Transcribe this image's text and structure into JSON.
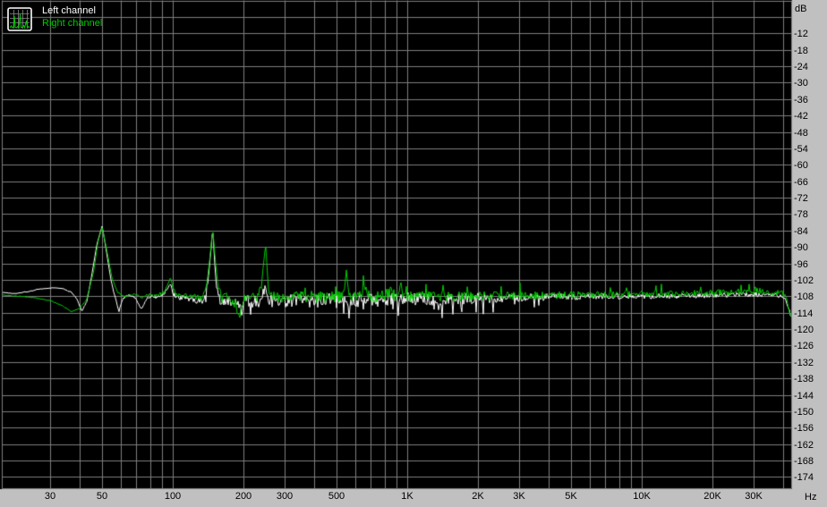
{
  "legend": {
    "left_label": "Left channel",
    "right_label": "Right channel",
    "icon": "spectrum-thumbnail-icon"
  },
  "colors": {
    "plot_background": "#000000",
    "gutter_background": "#c0c0c0",
    "grid": "#7e7e7e",
    "left_channel": "#ffffff",
    "right_channel": "#00cc00",
    "label_text": "#000000"
  },
  "axes": {
    "x": {
      "unit": "Hz",
      "scale": "log",
      "min_hz": 18.3,
      "max_hz": 43400,
      "gridlines_hz": [
        30,
        40,
        50,
        60,
        70,
        80,
        90,
        100,
        200,
        300,
        400,
        500,
        600,
        700,
        800,
        900,
        1000,
        2000,
        3000,
        4000,
        5000,
        6000,
        7000,
        8000,
        9000,
        10000,
        20000,
        30000,
        40000
      ],
      "tick_labels": [
        {
          "hz": 30,
          "label": "30"
        },
        {
          "hz": 50,
          "label": "50"
        },
        {
          "hz": 100,
          "label": "100"
        },
        {
          "hz": 200,
          "label": "200"
        },
        {
          "hz": 300,
          "label": "300"
        },
        {
          "hz": 500,
          "label": "500"
        },
        {
          "hz": 1000,
          "label": "1K"
        },
        {
          "hz": 2000,
          "label": "2K"
        },
        {
          "hz": 3000,
          "label": "3K"
        },
        {
          "hz": 5000,
          "label": "5K"
        },
        {
          "hz": 10000,
          "label": "10K"
        },
        {
          "hz": 20000,
          "label": "20K"
        },
        {
          "hz": 30000,
          "label": "30K"
        }
      ]
    },
    "y": {
      "unit": "dB",
      "scale": "linear",
      "max_db": 0,
      "min_db": -178,
      "grid_step_db": 6,
      "tick_labels": [
        {
          "db": -12,
          "label": "-12"
        },
        {
          "db": -18,
          "label": "-18"
        },
        {
          "db": -24,
          "label": "-24"
        },
        {
          "db": -30,
          "label": "-30"
        },
        {
          "db": -36,
          "label": "-36"
        },
        {
          "db": -42,
          "label": "-42"
        },
        {
          "db": -48,
          "label": "-48"
        },
        {
          "db": -54,
          "label": "-54"
        },
        {
          "db": -60,
          "label": "-60"
        },
        {
          "db": -66,
          "label": "-66"
        },
        {
          "db": -72,
          "label": "-72"
        },
        {
          "db": -78,
          "label": "-78"
        },
        {
          "db": -84,
          "label": "-84"
        },
        {
          "db": -90,
          "label": "-90"
        },
        {
          "db": -96,
          "label": "-96"
        },
        {
          "db": -102,
          "label": "-102"
        },
        {
          "db": -108,
          "label": "-108"
        },
        {
          "db": -114,
          "label": "-114"
        },
        {
          "db": -120,
          "label": "-120"
        },
        {
          "db": -126,
          "label": "-126"
        },
        {
          "db": -132,
          "label": "-132"
        },
        {
          "db": -138,
          "label": "-138"
        },
        {
          "db": -144,
          "label": "-144"
        },
        {
          "db": -150,
          "label": "-150"
        },
        {
          "db": -156,
          "label": "-156"
        },
        {
          "db": -162,
          "label": "-162"
        },
        {
          "db": -168,
          "label": "-168"
        },
        {
          "db": -174,
          "label": "-174"
        }
      ]
    }
  },
  "chart_data": {
    "type": "line",
    "title": "",
    "xlabel": "Hz",
    "ylabel": "dB",
    "xlim": [
      18.3,
      43400
    ],
    "ylim": [
      -178,
      0
    ],
    "grid": true,
    "legend_position": "top-left",
    "noise_floor_db": -108,
    "series": [
      {
        "name": "Left channel",
        "color_ref": "left_channel",
        "keypoints_hz_db": [
          [
            18.3,
            -106.5
          ],
          [
            21,
            -107
          ],
          [
            24,
            -106.3
          ],
          [
            27,
            -105.4
          ],
          [
            31,
            -104.9
          ],
          [
            34,
            -105.2
          ],
          [
            37,
            -106.6
          ],
          [
            39,
            -109
          ],
          [
            41,
            -113.5
          ],
          [
            43,
            -110
          ],
          [
            45,
            -101
          ],
          [
            47.5,
            -89
          ],
          [
            50,
            -82.3
          ],
          [
            52,
            -91
          ],
          [
            54.5,
            -102
          ],
          [
            57,
            -109
          ],
          [
            59,
            -113.3
          ],
          [
            61,
            -109
          ],
          [
            64,
            -107.5
          ],
          [
            68,
            -108
          ],
          [
            71,
            -110
          ],
          [
            74,
            -112.8
          ],
          [
            77,
            -109
          ],
          [
            81,
            -108
          ],
          [
            86,
            -108.5
          ],
          [
            92,
            -107
          ],
          [
            96,
            -104.5
          ],
          [
            98,
            -103.5
          ],
          [
            100,
            -107
          ],
          [
            105,
            -108.5
          ],
          [
            112,
            -108.5
          ],
          [
            120,
            -109
          ],
          [
            128,
            -109.5
          ],
          [
            136,
            -110
          ],
          [
            142,
            -101
          ],
          [
            146,
            -90
          ],
          [
            148,
            -82.8
          ],
          [
            151,
            -96
          ],
          [
            154,
            -106
          ],
          [
            160,
            -110
          ],
          [
            168,
            -109.5
          ],
          [
            176,
            -110
          ],
          [
            184,
            -110.5
          ],
          [
            192,
            -112
          ],
          [
            198,
            -114
          ],
          [
            203,
            -110
          ],
          [
            212,
            -109.5
          ],
          [
            222,
            -110
          ],
          [
            235,
            -109.5
          ],
          [
            246,
            -106
          ],
          [
            252,
            -107.5
          ],
          [
            265,
            -110
          ],
          [
            300,
            -109.5
          ],
          [
            350,
            -109.5
          ],
          [
            430,
            -109.5
          ],
          [
            520,
            -109.5
          ],
          [
            620,
            -109.5
          ],
          [
            750,
            -109.5
          ],
          [
            900,
            -109.3
          ],
          [
            1100,
            -109
          ],
          [
            1500,
            -109
          ],
          [
            2000,
            -108.7
          ],
          [
            3000,
            -108.5
          ],
          [
            4500,
            -108.2
          ],
          [
            7000,
            -108
          ],
          [
            10000,
            -107.9
          ],
          [
            15000,
            -107.8
          ],
          [
            22000,
            -107.6
          ],
          [
            30000,
            -107.4
          ],
          [
            37000,
            -107.6
          ],
          [
            40000,
            -108
          ],
          [
            41500,
            -110
          ],
          [
            42500,
            -113
          ],
          [
            43300,
            -116
          ]
        ],
        "noise": {
          "seed": 1337,
          "amplitude_profile_hz_db": [
            [
              18.3,
              0.15
            ],
            [
              40,
              0.2
            ],
            [
              55,
              0.35
            ],
            [
              80,
              0.6
            ],
            [
              110,
              0.9
            ],
            [
              150,
              1.6
            ],
            [
              210,
              2.3
            ],
            [
              400,
              2.6
            ],
            [
              900,
              2.6
            ],
            [
              1600,
              2.2
            ],
            [
              3000,
              1.5
            ],
            [
              6000,
              1.1
            ],
            [
              12000,
              1.0
            ],
            [
              25000,
              0.9
            ],
            [
              43300,
              0.8
            ]
          ],
          "down_spikes": {
            "chance": 0.07,
            "max_extra_db": 5.5,
            "min_hz": 130,
            "max_hz": 3800
          },
          "up_spikes": {
            "chance": 0.0,
            "max_extra_db": 0,
            "min_hz": 0,
            "max_hz": 0
          }
        }
      },
      {
        "name": "Right channel",
        "color_ref": "right_channel",
        "keypoints_hz_db": [
          [
            18.3,
            -107.5
          ],
          [
            22,
            -108
          ],
          [
            26,
            -108.6
          ],
          [
            30,
            -109.6
          ],
          [
            34,
            -111.5
          ],
          [
            37,
            -113.6
          ],
          [
            40,
            -112.5
          ],
          [
            43,
            -109
          ],
          [
            46,
            -99
          ],
          [
            48,
            -88
          ],
          [
            50,
            -82.8
          ],
          [
            52,
            -90
          ],
          [
            55,
            -101
          ],
          [
            58,
            -106.5
          ],
          [
            62,
            -108
          ],
          [
            66,
            -107.5
          ],
          [
            70,
            -107.2
          ],
          [
            74,
            -108.5
          ],
          [
            78,
            -107.2
          ],
          [
            82,
            -108
          ],
          [
            86,
            -107.6
          ],
          [
            92,
            -106.5
          ],
          [
            96,
            -103
          ],
          [
            98,
            -101
          ],
          [
            100,
            -105
          ],
          [
            104,
            -107.5
          ],
          [
            110,
            -107.6
          ],
          [
            118,
            -108
          ],
          [
            126,
            -108.4
          ],
          [
            134,
            -109
          ],
          [
            140,
            -103
          ],
          [
            144,
            -94
          ],
          [
            148,
            -83.2
          ],
          [
            152,
            -95
          ],
          [
            156,
            -104
          ],
          [
            162,
            -109
          ],
          [
            170,
            -108
          ],
          [
            178,
            -109.5
          ],
          [
            186,
            -111
          ],
          [
            191,
            -117
          ],
          [
            196,
            -111
          ],
          [
            205,
            -108.5
          ],
          [
            215,
            -108
          ],
          [
            228,
            -108.3
          ],
          [
            238,
            -105.5
          ],
          [
            244,
            -96
          ],
          [
            249,
            -89
          ],
          [
            253,
            -99
          ],
          [
            257,
            -107
          ],
          [
            270,
            -108.4
          ],
          [
            300,
            -108.2
          ],
          [
            340,
            -108.2
          ],
          [
            400,
            -108.2
          ],
          [
            470,
            -108.2
          ],
          [
            535,
            -108
          ],
          [
            550,
            -98.5
          ],
          [
            562,
            -108
          ],
          [
            610,
            -108
          ],
          [
            645,
            -106
          ],
          [
            650,
            -100.5
          ],
          [
            658,
            -108
          ],
          [
            700,
            -108.2
          ],
          [
            770,
            -108.2
          ],
          [
            843,
            -107
          ],
          [
            850,
            -103
          ],
          [
            858,
            -107.5
          ],
          [
            900,
            -108
          ],
          [
            935,
            -106
          ],
          [
            941,
            -103.5
          ],
          [
            950,
            -108
          ],
          [
            1100,
            -108.2
          ],
          [
            1500,
            -108.3
          ],
          [
            2000,
            -108
          ],
          [
            3000,
            -107.8
          ],
          [
            4500,
            -107.6
          ],
          [
            7000,
            -107.4
          ],
          [
            10000,
            -107.2
          ],
          [
            15000,
            -107
          ],
          [
            20000,
            -106.8
          ],
          [
            26000,
            -106.4
          ],
          [
            32000,
            -106.2
          ],
          [
            36000,
            -106.5
          ],
          [
            39500,
            -106.8
          ],
          [
            41000,
            -108.5
          ],
          [
            42300,
            -112
          ],
          [
            43300,
            -115.5
          ]
        ],
        "noise": {
          "seed": 4242,
          "amplitude_profile_hz_db": [
            [
              18.3,
              0.12
            ],
            [
              40,
              0.15
            ],
            [
              55,
              0.3
            ],
            [
              80,
              0.55
            ],
            [
              110,
              0.85
            ],
            [
              150,
              1.4
            ],
            [
              210,
              1.9
            ],
            [
              400,
              2.2
            ],
            [
              900,
              2.2
            ],
            [
              1600,
              1.9
            ],
            [
              3000,
              1.5
            ],
            [
              6000,
              1.3
            ],
            [
              12000,
              1.2
            ],
            [
              25000,
              1.3
            ],
            [
              43300,
              1.1
            ]
          ],
          "down_spikes": {
            "chance": 0.0,
            "max_extra_db": 0,
            "min_hz": 0,
            "max_hz": 0
          },
          "up_spikes": {
            "chance": 0.06,
            "max_extra_db": 3.8,
            "min_hz": 260,
            "max_hz": 43300
          }
        }
      }
    ]
  }
}
